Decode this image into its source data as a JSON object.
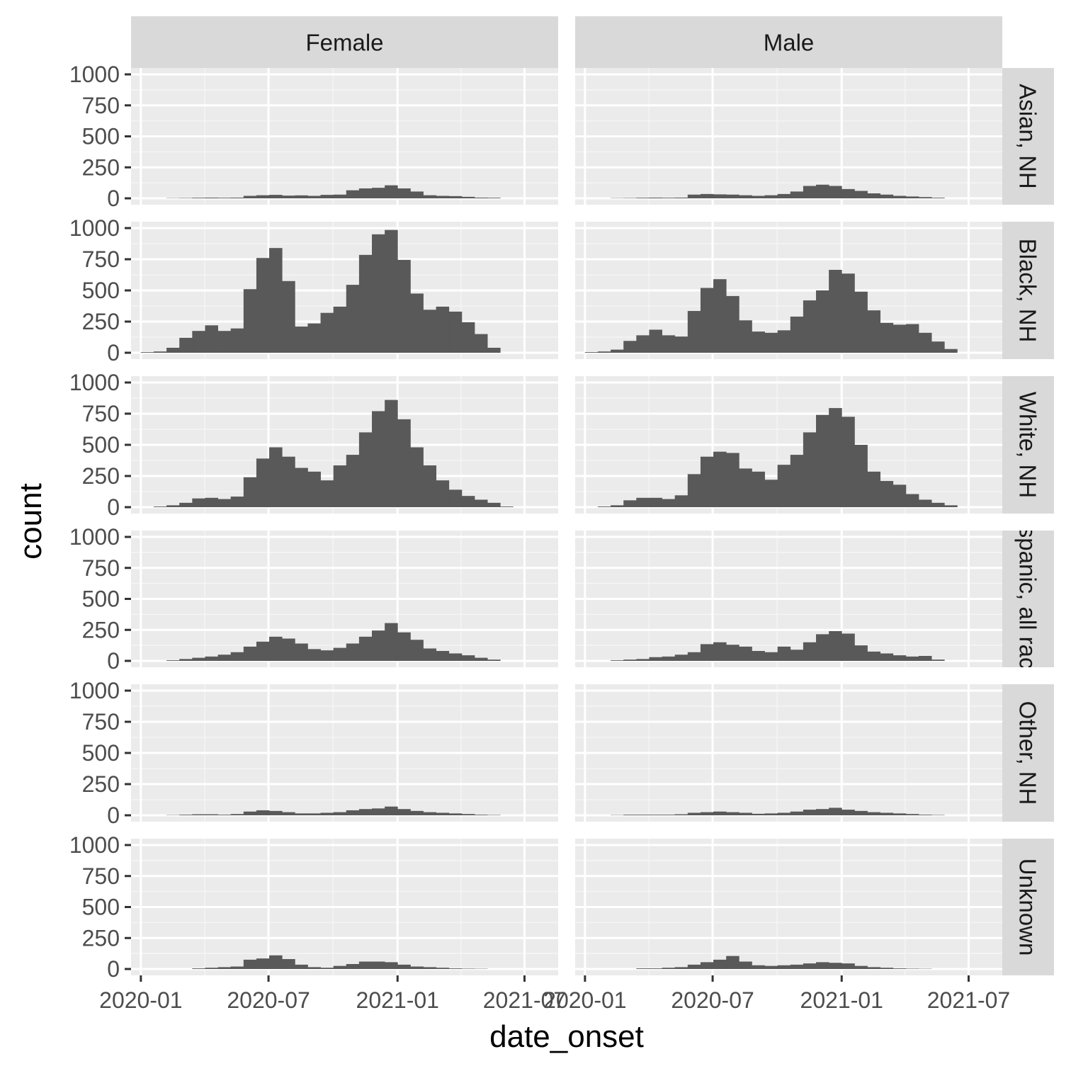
{
  "chart_data": {
    "type": "bar",
    "subtype": "faceted-histogram",
    "xlabel": "date_onset",
    "ylabel": "count",
    "ylim": [
      0,
      1000
    ],
    "yticks": [
      0,
      250,
      500,
      750,
      1000
    ],
    "ytick_labels": [
      "0",
      "250",
      "500",
      "750",
      "1000"
    ],
    "xticks": [
      "2020-01",
      "2020-07",
      "2021-01",
      "2021-07"
    ],
    "xlim": [
      "2019-12-18",
      "2021-08-18"
    ],
    "grid": true,
    "colors": {
      "bar": "#595959",
      "panel_bg": "#ebebeb",
      "strip_bg": "#d9d9d9",
      "grid_major": "#ffffff",
      "grid_minor": "#f5f5f5"
    },
    "column_facets": [
      "Female",
      "Male"
    ],
    "row_facets": [
      "Asian, NH",
      "Black, NH",
      "White, NH",
      "Hispanic, all races",
      "Other, NH",
      "Unknown"
    ],
    "bins_start": "2020-01-01",
    "bin_width_days": 18.3,
    "panels": [
      {
        "row": "Asian, NH",
        "col": "Female",
        "counts": [
          0,
          0,
          2,
          3,
          5,
          6,
          5,
          6,
          20,
          25,
          28,
          22,
          24,
          20,
          28,
          30,
          65,
          80,
          85,
          105,
          80,
          55,
          25,
          20,
          18,
          12,
          6,
          5,
          0,
          0
        ]
      },
      {
        "row": "Asian, NH",
        "col": "Male",
        "counts": [
          0,
          0,
          2,
          3,
          5,
          6,
          5,
          6,
          30,
          35,
          32,
          30,
          25,
          20,
          25,
          35,
          55,
          100,
          110,
          100,
          75,
          60,
          40,
          30,
          20,
          15,
          10,
          5,
          0,
          0
        ]
      },
      {
        "row": "Black, NH",
        "col": "Female",
        "counts": [
          5,
          10,
          40,
          120,
          175,
          220,
          175,
          195,
          510,
          760,
          840,
          575,
          210,
          235,
          320,
          370,
          545,
          785,
          950,
          985,
          745,
          475,
          345,
          370,
          330,
          245,
          150,
          40,
          0,
          0
        ]
      },
      {
        "row": "Black, NH",
        "col": "Male",
        "counts": [
          5,
          10,
          25,
          95,
          140,
          185,
          140,
          130,
          335,
          520,
          590,
          455,
          260,
          170,
          160,
          180,
          290,
          420,
          500,
          665,
          635,
          490,
          340,
          240,
          225,
          230,
          160,
          90,
          30,
          0
        ]
      },
      {
        "row": "White, NH",
        "col": "Female",
        "counts": [
          0,
          5,
          15,
          35,
          70,
          75,
          65,
          85,
          240,
          390,
          480,
          405,
          315,
          285,
          215,
          335,
          420,
          600,
          770,
          860,
          705,
          480,
          335,
          215,
          140,
          90,
          60,
          35,
          5,
          0
        ]
      },
      {
        "row": "White, NH",
        "col": "Male",
        "counts": [
          0,
          5,
          15,
          55,
          75,
          75,
          65,
          95,
          265,
          405,
          445,
          435,
          310,
          285,
          220,
          340,
          420,
          600,
          740,
          795,
          725,
          500,
          285,
          210,
          180,
          105,
          60,
          35,
          15,
          0
        ]
      },
      {
        "row": "Hispanic, all races",
        "col": "Female",
        "counts": [
          0,
          0,
          5,
          15,
          25,
          35,
          50,
          70,
          115,
          155,
          195,
          180,
          140,
          95,
          85,
          105,
          140,
          195,
          245,
          305,
          230,
          170,
          100,
          80,
          60,
          45,
          25,
          10,
          0,
          0
        ]
      },
      {
        "row": "Hispanic, all races",
        "col": "Male",
        "counts": [
          0,
          0,
          5,
          10,
          15,
          30,
          35,
          50,
          70,
          135,
          150,
          130,
          115,
          80,
          70,
          115,
          90,
          150,
          215,
          240,
          220,
          125,
          75,
          60,
          45,
          35,
          40,
          10,
          0,
          0
        ]
      },
      {
        "row": "Other, NH",
        "col": "Female",
        "counts": [
          0,
          0,
          2,
          5,
          8,
          8,
          5,
          10,
          30,
          40,
          35,
          25,
          15,
          15,
          20,
          25,
          40,
          50,
          55,
          70,
          50,
          35,
          25,
          20,
          15,
          10,
          5,
          3,
          0,
          0
        ]
      },
      {
        "row": "Other, NH",
        "col": "Male",
        "counts": [
          0,
          0,
          2,
          5,
          5,
          5,
          5,
          8,
          20,
          25,
          30,
          25,
          20,
          12,
          15,
          20,
          30,
          45,
          50,
          60,
          45,
          35,
          25,
          20,
          15,
          10,
          5,
          3,
          0,
          0
        ]
      },
      {
        "row": "Unknown",
        "col": "Female",
        "counts": [
          0,
          0,
          0,
          0,
          5,
          10,
          15,
          20,
          75,
          85,
          110,
          80,
          35,
          15,
          10,
          25,
          40,
          60,
          60,
          55,
          35,
          20,
          15,
          10,
          5,
          3,
          2,
          0,
          0,
          0
        ]
      },
      {
        "row": "Unknown",
        "col": "Male",
        "counts": [
          0,
          0,
          0,
          0,
          5,
          5,
          10,
          15,
          35,
          55,
          75,
          105,
          60,
          30,
          25,
          30,
          35,
          45,
          55,
          50,
          45,
          25,
          15,
          10,
          5,
          3,
          2,
          0,
          0,
          0
        ]
      }
    ]
  }
}
